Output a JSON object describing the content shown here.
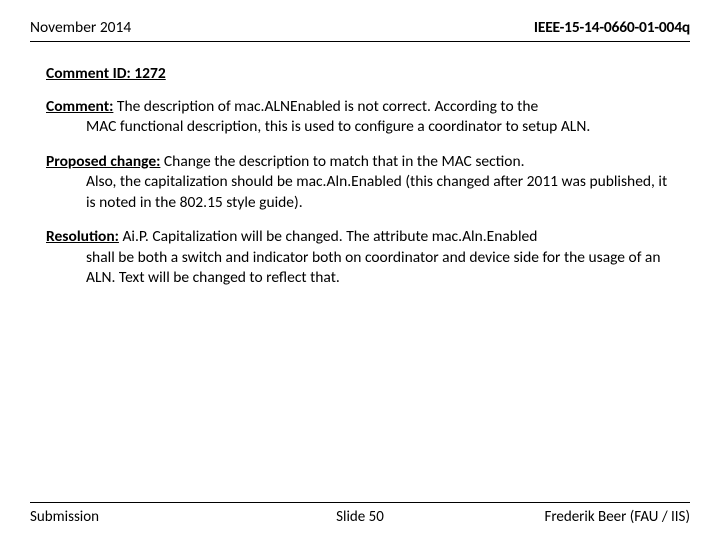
{
  "header": {
    "date": "November 2014",
    "doc_id": "IEEE-15-14-0660-01-004q"
  },
  "comment_id_label": "Comment ID: 1272",
  "sections": {
    "comment": {
      "label": "Comment:",
      "line1": " The description of mac.ALNEnabled is not correct. According to the",
      "rest": "MAC functional description, this is used to configure a coordinator to setup ALN."
    },
    "proposed": {
      "label": "Proposed change:",
      "line1": " Change the description to match that in the MAC section.",
      "rest": "Also, the capitalization should be mac.Aln.Enabled (this changed after 2011 was published, it is noted in the 802.15 style guide)."
    },
    "resolution": {
      "label": "Resolution:",
      "line1": " Ai.P. Capitalization will be changed. The attribute mac.Aln.Enabled",
      "rest": "shall be both a switch and indicator both on coordinator and device side for the usage of an ALN. Text will be changed to reflect that."
    }
  },
  "footer": {
    "left": "Submission",
    "center": "Slide 50",
    "right": "Frederik Beer (FAU / IIS)"
  }
}
